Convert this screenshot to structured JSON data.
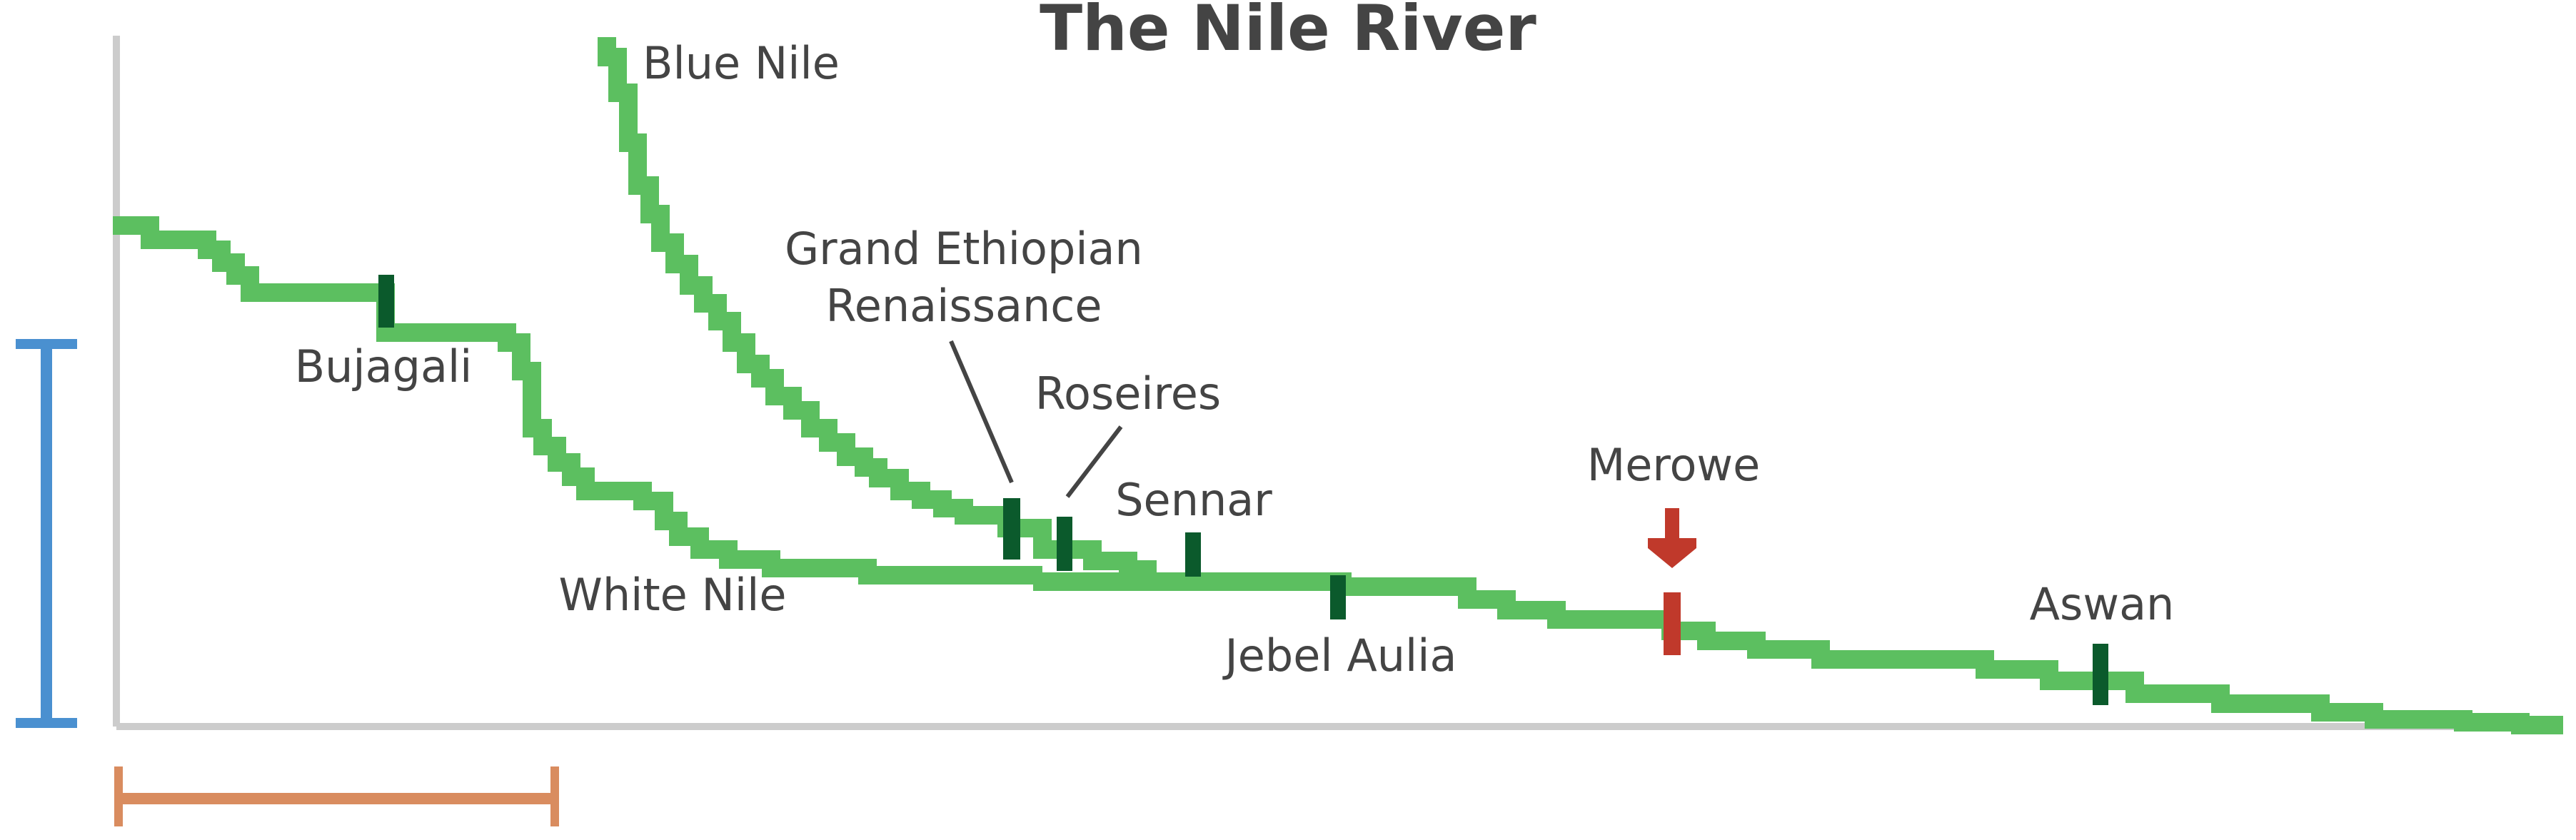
{
  "title": "The Nile River",
  "colors": {
    "river": "#5cbf60",
    "dam": "#0b5a2c",
    "highlight_dam": "#c0392b",
    "elevation_scale": "#4a90d0",
    "distance_scale": "#d98c5f",
    "axis": "#cccccc",
    "text": "#444444"
  },
  "rivers": [
    {
      "id": "white-nile",
      "label": "White Nile"
    },
    {
      "id": "blue-nile",
      "label": "Blue Nile"
    },
    {
      "id": "main-nile",
      "label": ""
    }
  ],
  "dams": [
    {
      "id": "bujagali",
      "label": "Bujagali"
    },
    {
      "id": "gerd",
      "label": "Grand Ethiopian\nRenaissance"
    },
    {
      "id": "roseires",
      "label": "Roseires"
    },
    {
      "id": "sennar",
      "label": "Sennar"
    },
    {
      "id": "jebel-aulia",
      "label": "Jebel Aulia"
    },
    {
      "id": "merowe",
      "label": "Merowe",
      "highlighted": true
    },
    {
      "id": "aswan",
      "label": "Aswan"
    }
  ],
  "highlight_marker": {
    "icon": "down-arrow-icon",
    "target": "merowe"
  },
  "scale_bars": [
    {
      "id": "elevation-scale",
      "orientation": "vertical",
      "label": ""
    },
    {
      "id": "distance-scale",
      "orientation": "horizontal",
      "label": ""
    }
  ]
}
